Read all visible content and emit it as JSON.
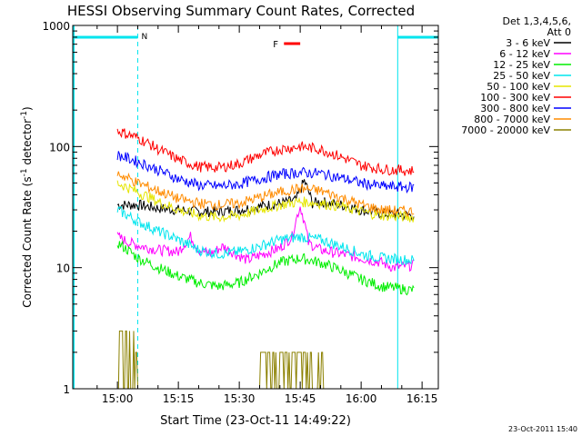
{
  "chart_data": {
    "type": "line",
    "title": "HESSI Observing Summary Count Rates, Corrected",
    "xlabel": "Start Time (23-Oct-11 14:49:22)",
    "ylabel_main": "Corrected Count Rate (s",
    "ylabel_sup1": "-1",
    "ylabel_mid": " detector",
    "ylabel_sup2": "-1",
    "ylabel_end": ")",
    "y_scale": "log",
    "ylim": [
      1,
      1000
    ],
    "xlim_minutes": [
      -11,
      79
    ],
    "x_ticks": [
      {
        "t": 0,
        "label": "15:00"
      },
      {
        "t": 15,
        "label": "15:15"
      },
      {
        "t": 30,
        "label": "15:30"
      },
      {
        "t": 45,
        "label": "15:45"
      },
      {
        "t": 60,
        "label": "16:00"
      },
      {
        "t": 75,
        "label": "16:15"
      }
    ],
    "y_ticks": [
      {
        "v": 1,
        "label": "1"
      },
      {
        "v": 10,
        "label": "10"
      },
      {
        "v": 100,
        "label": "100"
      },
      {
        "v": 1000,
        "label": "1000"
      }
    ],
    "legend": {
      "header1": "Det 1,3,4,5,6,",
      "header2": "Att 0",
      "placement": "right"
    },
    "series": [
      {
        "name": "3 - 6 keV",
        "color": "#000000",
        "x": [
          0,
          5,
          10,
          15,
          20,
          25,
          30,
          35,
          40,
          44,
          46,
          48,
          50,
          55,
          60,
          65,
          73
        ],
        "y": [
          33,
          33,
          31,
          30,
          29,
          29,
          30,
          32,
          34,
          36,
          52,
          34,
          35,
          33,
          30,
          28,
          27
        ]
      },
      {
        "name": "6 - 12 keV",
        "color": "#ff00ff",
        "x": [
          0,
          3,
          6,
          10,
          15,
          18,
          20,
          23,
          26,
          29,
          32,
          36,
          40,
          43,
          45,
          47,
          50,
          55,
          60,
          65,
          68,
          73
        ],
        "y": [
          18,
          16,
          15,
          14,
          13.5,
          18,
          14,
          13,
          15,
          13,
          11.5,
          13,
          14.5,
          18,
          32,
          16,
          14,
          13,
          12,
          11,
          10,
          10.5
        ]
      },
      {
        "name": "12 - 25 keV",
        "color": "#00ee00",
        "x": [
          0,
          5,
          10,
          15,
          20,
          25,
          30,
          35,
          40,
          45,
          50,
          55,
          60,
          65,
          73
        ],
        "y": [
          16,
          12,
          10,
          8.5,
          7.5,
          7,
          7.5,
          9,
          11,
          12,
          11,
          9.5,
          8,
          7,
          6.5
        ]
      },
      {
        "name": "25 - 50 keV",
        "color": "#00e5ee",
        "x": [
          0,
          5,
          10,
          15,
          20,
          25,
          30,
          35,
          40,
          45,
          50,
          55,
          60,
          65,
          73
        ],
        "y": [
          30,
          24,
          20,
          17,
          14,
          13,
          13.5,
          15,
          17,
          18,
          17,
          15,
          13,
          12,
          11.5
        ]
      },
      {
        "name": "50 - 100 keV",
        "color": "#e5e500",
        "x": [
          0,
          5,
          10,
          15,
          20,
          25,
          30,
          35,
          40,
          45,
          50,
          55,
          60,
          65,
          73
        ],
        "y": [
          50,
          42,
          35,
          30,
          27,
          26,
          27,
          30,
          33,
          35,
          34,
          32,
          29,
          27,
          26
        ]
      },
      {
        "name": "100 - 300 keV",
        "color": "#ff0000",
        "x": [
          0,
          5,
          10,
          15,
          20,
          25,
          30,
          35,
          40,
          45,
          50,
          55,
          60,
          65,
          73
        ],
        "y": [
          135,
          118,
          95,
          78,
          68,
          67,
          72,
          85,
          95,
          100,
          95,
          82,
          70,
          65,
          63
        ]
      },
      {
        "name": "300 - 800 keV",
        "color": "#0000ff",
        "x": [
          0,
          5,
          10,
          15,
          20,
          25,
          30,
          35,
          40,
          45,
          50,
          55,
          60,
          65,
          73
        ],
        "y": [
          85,
          75,
          64,
          54,
          48,
          47,
          49,
          54,
          59,
          61,
          60,
          55,
          50,
          47,
          46
        ]
      },
      {
        "name": "800 - 7000 keV",
        "color": "#ff8c00",
        "x": [
          0,
          5,
          10,
          15,
          20,
          25,
          30,
          35,
          40,
          45,
          50,
          55,
          60,
          65,
          73
        ],
        "y": [
          60,
          50,
          43,
          37,
          34,
          33,
          34,
          38,
          42,
          45,
          43,
          38,
          33,
          30,
          29
        ]
      },
      {
        "name": "7000 - 20000 keV",
        "color": "#8b8000",
        "x": [
          0,
          3,
          4.5,
          5,
          10,
          15,
          20,
          25,
          30,
          34,
          35,
          40,
          45,
          50,
          51,
          55,
          60,
          65,
          73
        ],
        "y": [
          3,
          3,
          2,
          1,
          1,
          1,
          1,
          1,
          1,
          1,
          2,
          2,
          2,
          2,
          1,
          1,
          1,
          1,
          1
        ]
      }
    ],
    "annotations": {
      "flare_flag_label": "F",
      "flare_interval": [
        41,
        45
      ],
      "night_label": "N",
      "night_intervals": [
        [
          -11,
          5
        ],
        [
          69,
          79
        ]
      ],
      "saa_boundaries": [
        5,
        69,
        79
      ],
      "timestamp": "23-Oct-2011 15:40"
    },
    "grid": false
  }
}
